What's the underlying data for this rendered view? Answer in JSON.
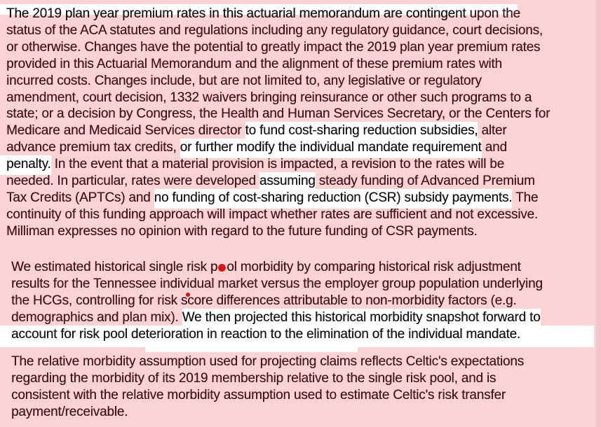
{
  "colors": {
    "page_bg": "#fcd3d3",
    "edge_strip": "#f5c5c8",
    "highlight": "#ffffff",
    "text": "#441519",
    "text_on_white": "#161313",
    "annotation_red": "#d81414"
  },
  "document": {
    "paragraphs": [
      {
        "name": "regulatory-contingency",
        "lines": [
          [
            {
              "t": "The 2019 plan year premium rates in this actuarial memorandum are contingent",
              "k": "blk"
            },
            {
              "t": " upon the"
            }
          ],
          [
            {
              "t": "status of the ACA statutes and regulations including any regulatory guidance, court decisions,"
            }
          ],
          [
            {
              "t": "or otherwise. Changes have the potential to greatly impact the 2019 plan year premium rates"
            }
          ],
          [
            {
              "t": "provided in this Actuarial Memorandum and the alignment of these premium rates with"
            }
          ],
          [
            {
              "t": "incurred costs. Changes include, but are not limited to, any legislative or regulatory"
            }
          ],
          [
            {
              "t": "amendment, court decision, 1332 waivers bringing reinsurance or other such programs to a"
            }
          ],
          [
            {
              "t": "state; or a decision by Congress, the Health and Human Services Secretary, or the Centers for"
            }
          ],
          [
            {
              "t": "Medicare and Medicaid Services director "
            },
            {
              "t": "to fund cost-sharing reduction subsidies,",
              "k": "hl"
            },
            {
              "t": " alter"
            }
          ],
          [
            {
              "t": "advance premium tax credits, "
            },
            {
              "t": "or further modify the individual mandate requirement",
              "k": "hl"
            },
            {
              "t": " and"
            }
          ],
          [
            {
              "t": "penalty.",
              "k": "hlL"
            },
            {
              "t": " In the event that a material provision is impacted, a revision to the rates will be"
            }
          ],
          [
            {
              "t": "needed. In particular, rates were developed "
            },
            {
              "t": "assuming",
              "k": "hl"
            },
            {
              "t": " steady funding of Advanced Premium"
            }
          ],
          [
            {
              "t": "Tax Credits (APTCs) and "
            },
            {
              "t": "no funding of cost-sharing reduction (CSR) subsidy payments.",
              "k": "hl"
            },
            {
              "t": " The"
            }
          ],
          [
            {
              "t": "continuity of this funding approach will impact whether rates are sufficient and not excessive."
            }
          ],
          [
            {
              "t": "Milliman expresses no opinion with regard to the future funding of CSR payments."
            }
          ]
        ]
      },
      {
        "name": "morbidity-estimate",
        "lines": [
          [
            {
              "t": "We estimated historical single risk p"
            },
            {
              "k": "dot"
            },
            {
              "t": "ol morbidity by comparing historical risk adjustment"
            }
          ],
          [
            {
              "t": "results for the Tennessee individual market versus the employer group population underlying"
            }
          ],
          [
            {
              "t": "the HCGs, controlling for risk s"
            },
            {
              "t": "c",
              "k": "cdot"
            },
            {
              "t": "ore differences attributable to non-morbidity factors (e.g."
            }
          ],
          [
            {
              "t": "demographics and plan mix). "
            },
            {
              "t": "We then projected this historical morbidity snapshot forward to",
              "k": "hl"
            }
          ],
          [
            {
              "t": "account for risk pool deterioration in reaction to the elimination of the individual mandate.",
              "k": "blk"
            }
          ]
        ]
      },
      {
        "name": "relative-morbidity",
        "lines": [
          [
            {
              "t": "The relative morbidity assumption used for projecting claims reflects Celtic's expectations"
            }
          ],
          [
            {
              "t": "regarding the morbidity of its 2019 membership relative to the single risk pool, and is"
            }
          ],
          [
            {
              "t": "consistent with the relative morbidity assumption used to estimate Celtic's risk transfer"
            }
          ],
          [
            {
              "t": "payment/receivable."
            }
          ]
        ]
      }
    ]
  }
}
